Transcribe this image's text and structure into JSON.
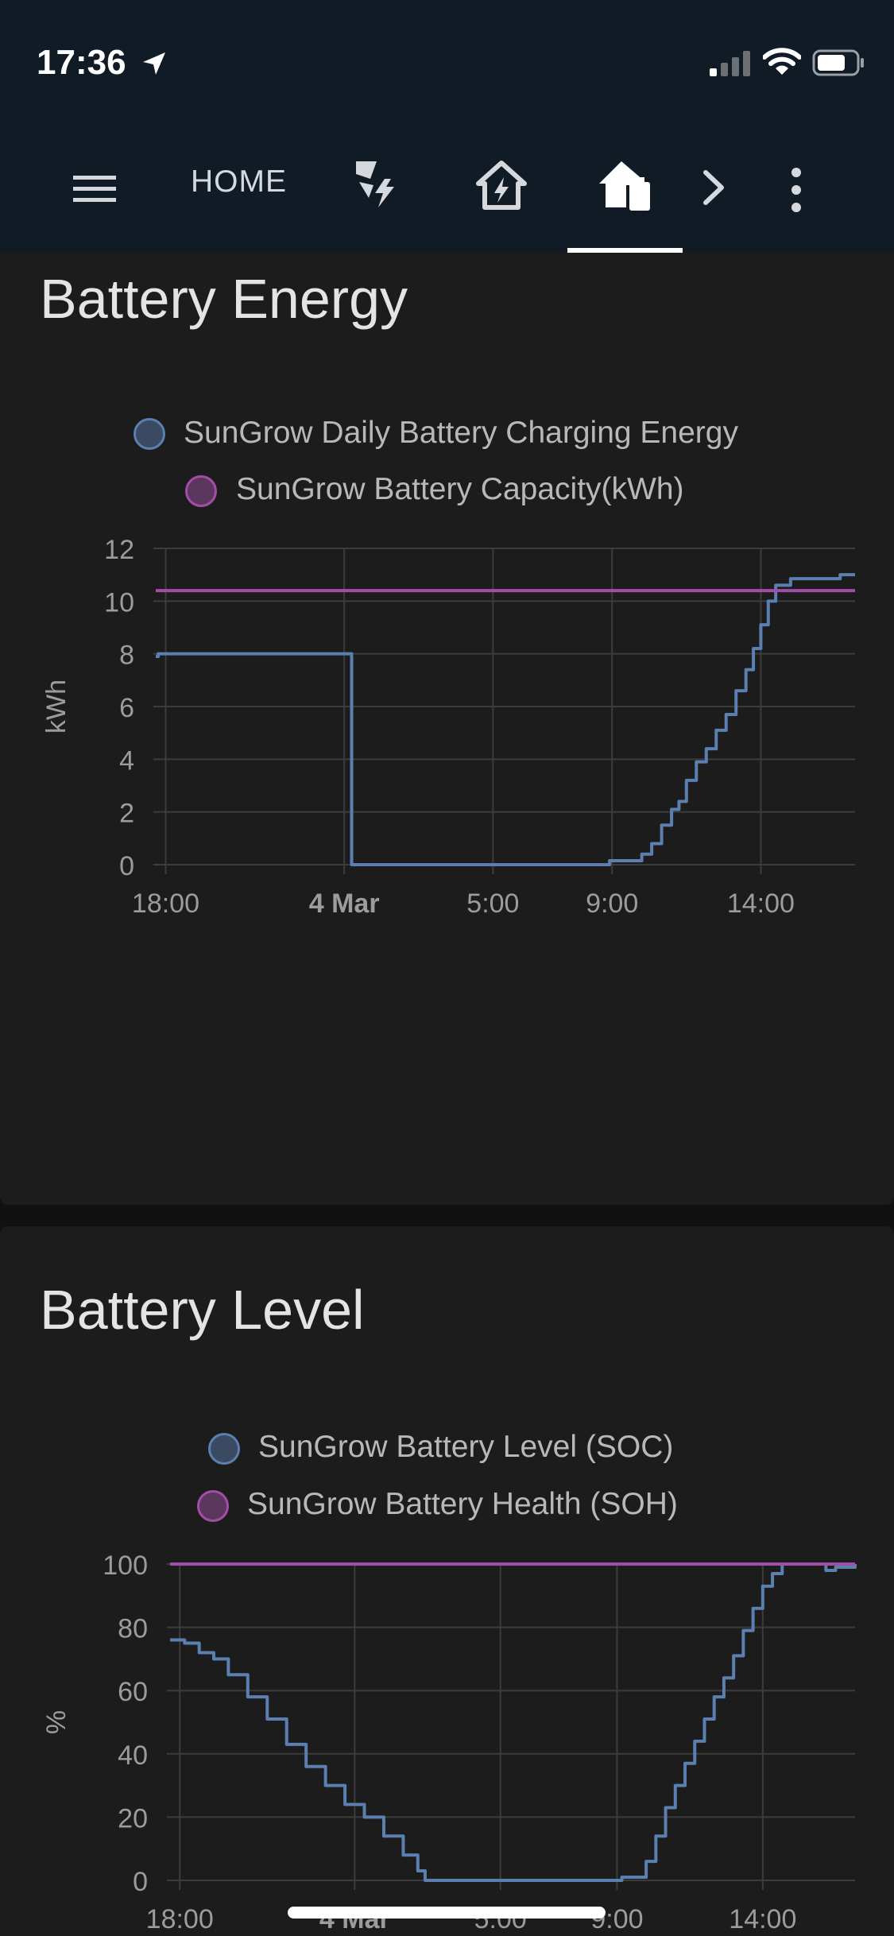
{
  "status_bar": {
    "time": "17:36"
  },
  "app_bar": {
    "tabs": [
      {
        "label": "HOME"
      },
      {
        "icon": "solar-power-icon"
      },
      {
        "icon": "home-lightning-icon"
      },
      {
        "icon": "home-battery-icon",
        "selected": true
      }
    ],
    "more_icon": "chevron-right-icon",
    "menu_icon": "dots-vertical-icon"
  },
  "colors": {
    "series_blue": "#5a7fb0",
    "series_purple": "#a24ea6",
    "grid": "#3c3c3c",
    "axis_text": "#9c9c9c"
  },
  "cards": [
    {
      "title": "Battery Energy"
    },
    {
      "title": "Battery Level"
    }
  ],
  "chart_data": [
    {
      "type": "line",
      "title": "Battery Energy",
      "ylabel": "kWh",
      "ylim": [
        0,
        12
      ],
      "yticks": [
        0,
        2,
        4,
        6,
        8,
        10,
        12
      ],
      "xticks": [
        {
          "label": "18:00",
          "bold": false
        },
        {
          "label": "4 Mar",
          "bold": true
        },
        {
          "label": "5:00",
          "bold": false
        },
        {
          "label": "9:00",
          "bold": false
        },
        {
          "label": "14:00",
          "bold": false
        }
      ],
      "legend_position": "top",
      "grid": true,
      "series": [
        {
          "name": "SunGrow Daily Battery Charging Energy",
          "color": "#5a7fb0",
          "step": true,
          "points": [
            [
              "17:40",
              7.9
            ],
            [
              "17:45",
              8.0
            ],
            [
              "00:15",
              8.0
            ],
            [
              "00:15",
              0.0
            ],
            [
              "08:50",
              0.0
            ],
            [
              "08:55",
              0.15
            ],
            [
              "09:40",
              0.15
            ],
            [
              "10:00",
              0.4
            ],
            [
              "10:20",
              0.8
            ],
            [
              "10:40",
              1.5
            ],
            [
              "11:00",
              2.1
            ],
            [
              "11:15",
              2.4
            ],
            [
              "11:30",
              3.2
            ],
            [
              "11:50",
              3.9
            ],
            [
              "12:10",
              4.4
            ],
            [
              "12:30",
              5.1
            ],
            [
              "12:50",
              5.7
            ],
            [
              "13:10",
              6.6
            ],
            [
              "13:30",
              7.4
            ],
            [
              "13:45",
              8.2
            ],
            [
              "14:00",
              9.1
            ],
            [
              "14:15",
              10.0
            ],
            [
              "14:30",
              10.6
            ],
            [
              "15:00",
              10.85
            ],
            [
              "16:10",
              10.85
            ],
            [
              "16:40",
              11.0
            ],
            [
              "17:10",
              11.0
            ]
          ]
        },
        {
          "name": "SunGrow Battery Capacity(kWh)",
          "color": "#a24ea6",
          "step": false,
          "points": [
            [
              "17:40",
              10.4
            ],
            [
              "17:10",
              10.4
            ]
          ]
        }
      ]
    },
    {
      "type": "line",
      "title": "Battery Level",
      "ylabel": "%",
      "ylim": [
        0,
        100
      ],
      "yticks": [
        0,
        20,
        40,
        60,
        80,
        100
      ],
      "xticks": [
        {
          "label": "18:00",
          "bold": false
        },
        {
          "label": "4 Mar",
          "bold": true
        },
        {
          "label": "5:00",
          "bold": false
        },
        {
          "label": "9:00",
          "bold": false
        },
        {
          "label": "14:00",
          "bold": false
        }
      ],
      "legend_position": "top",
      "grid": true,
      "series": [
        {
          "name": "SunGrow Battery Level (SOC)",
          "color": "#5a7fb0",
          "step": true,
          "points": [
            [
              "17:40",
              76
            ],
            [
              "18:10",
              75
            ],
            [
              "18:40",
              72
            ],
            [
              "19:10",
              70
            ],
            [
              "19:40",
              65
            ],
            [
              "20:20",
              58
            ],
            [
              "21:00",
              51
            ],
            [
              "21:40",
              43
            ],
            [
              "22:20",
              36
            ],
            [
              "23:00",
              30
            ],
            [
              "23:40",
              24
            ],
            [
              "00:20",
              20
            ],
            [
              "01:00",
              14
            ],
            [
              "01:40",
              8
            ],
            [
              "02:10",
              3
            ],
            [
              "02:25",
              0
            ],
            [
              "09:00",
              0
            ],
            [
              "09:10",
              1
            ],
            [
              "09:40",
              1
            ],
            [
              "10:00",
              6
            ],
            [
              "10:20",
              14
            ],
            [
              "10:40",
              23
            ],
            [
              "11:00",
              30
            ],
            [
              "11:20",
              37
            ],
            [
              "11:40",
              44
            ],
            [
              "12:00",
              51
            ],
            [
              "12:20",
              58
            ],
            [
              "12:40",
              64
            ],
            [
              "13:00",
              71
            ],
            [
              "13:20",
              79
            ],
            [
              "13:40",
              86
            ],
            [
              "14:00",
              93
            ],
            [
              "14:20",
              97
            ],
            [
              "14:40",
              100
            ],
            [
              "16:00",
              100
            ],
            [
              "16:10",
              98
            ],
            [
              "16:30",
              99
            ],
            [
              "17:10",
              100
            ]
          ]
        },
        {
          "name": "SunGrow Battery Health (SOH)",
          "color": "#a24ea6",
          "step": false,
          "points": [
            [
              "17:40",
              100
            ],
            [
              "17:10",
              100
            ]
          ]
        }
      ]
    }
  ]
}
